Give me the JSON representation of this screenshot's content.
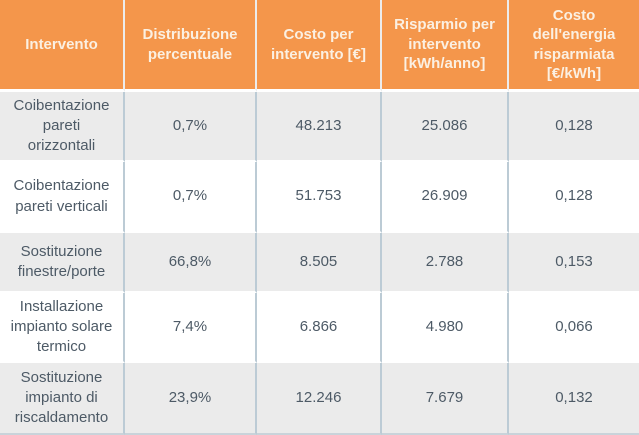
{
  "colors": {
    "header_bg": "#F4964B",
    "header_text": "#FBF0E2",
    "header_divider": "#ECECEC",
    "row_bg": "#FFFFFF",
    "row_alt_bg": "#EBEBEB",
    "body_text": "#4D5A66",
    "v_divider": "#BCCBD5",
    "h_divider": "#FFFFFF",
    "outer_bottom": "#C9D3DA"
  },
  "chart_data": {
    "type": "table",
    "columns": [
      "Intervento",
      "Distribuzione percentuale",
      "Costo per intervento [€]",
      "Risparmio per intervento [kWh/anno]",
      "Costo dell'energia risparmiata [€/kWh]"
    ],
    "rows": [
      {
        "cells": [
          "Coibentazione pareti orizzontali",
          "0,7%",
          "48.213",
          "25.086",
          "0,128"
        ],
        "numeric": {
          "distribuzione_pct": 0.7,
          "costo_eur": 48213,
          "risparmio_kwh_anno": 25086,
          "costo_energia_eur_kwh": 0.128
        }
      },
      {
        "cells": [
          "Coibentazione pareti verticali",
          "0,7%",
          "51.753",
          "26.909",
          "0,128"
        ],
        "numeric": {
          "distribuzione_pct": 0.7,
          "costo_eur": 51753,
          "risparmio_kwh_anno": 26909,
          "costo_energia_eur_kwh": 0.128
        }
      },
      {
        "cells": [
          "Sostituzione finestre/porte",
          "66,8%",
          "8.505",
          "2.788",
          "0,153"
        ],
        "numeric": {
          "distribuzione_pct": 66.8,
          "costo_eur": 8505,
          "risparmio_kwh_anno": 2788,
          "costo_energia_eur_kwh": 0.153
        }
      },
      {
        "cells": [
          "Installazione impianto solare termico",
          "7,4%",
          "6.866",
          "4.980",
          "0,066"
        ],
        "numeric": {
          "distribuzione_pct": 7.4,
          "costo_eur": 6866,
          "risparmio_kwh_anno": 4980,
          "costo_energia_eur_kwh": 0.066
        }
      },
      {
        "cells": [
          "Sostituzione impianto di riscaldamento",
          "23,9%",
          "12.246",
          "7.679",
          "0,132"
        ],
        "numeric": {
          "distribuzione_pct": 23.9,
          "costo_eur": 12246,
          "risparmio_kwh_anno": 7679,
          "costo_energia_eur_kwh": 0.132
        }
      }
    ]
  }
}
